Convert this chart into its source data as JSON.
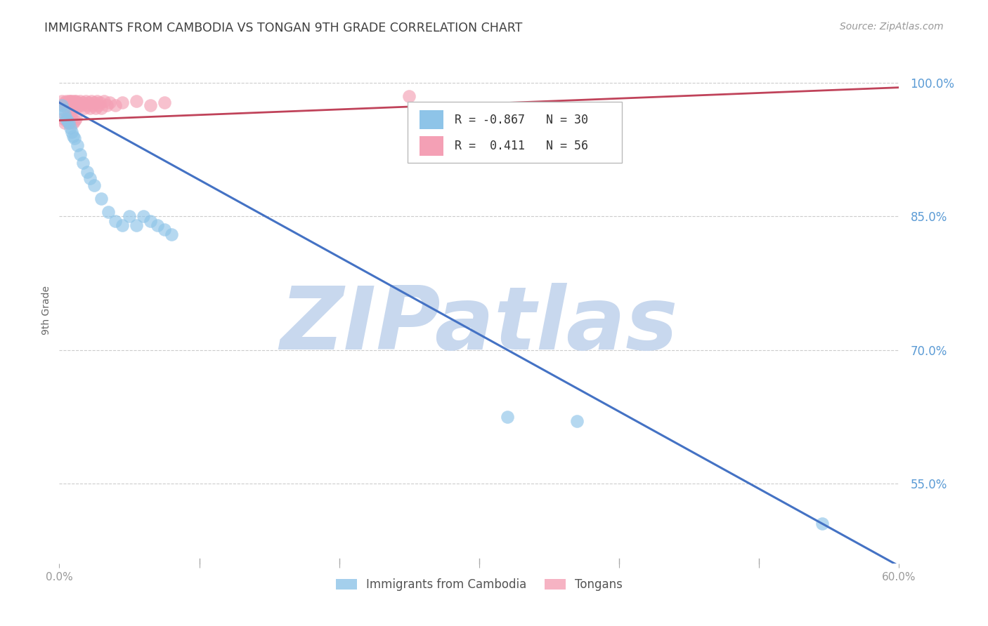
{
  "title": "IMMIGRANTS FROM CAMBODIA VS TONGAN 9TH GRADE CORRELATION CHART",
  "source": "Source: ZipAtlas.com",
  "ylabel": "9th Grade",
  "watermark": "ZIPatlas",
  "legend_blue_label": "Immigrants from Cambodia",
  "legend_pink_label": "Tongans",
  "blue_R": -0.867,
  "blue_N": 30,
  "pink_R": 0.411,
  "pink_N": 56,
  "xlim": [
    0.0,
    0.6
  ],
  "ylim": [
    0.46,
    1.03
  ],
  "yticks": [
    0.55,
    0.7,
    0.85,
    1.0
  ],
  "ytick_labels": [
    "55.0%",
    "70.0%",
    "85.0%",
    "100.0%"
  ],
  "blue_color": "#8EC4E8",
  "pink_color": "#F4A0B5",
  "blue_line_color": "#4472C4",
  "pink_line_color": "#C0435A",
  "grid_color": "#CCCCCC",
  "right_yaxis_color": "#5B9BD5",
  "title_color": "#404040",
  "watermark_color": "#C8D8EE",
  "blue_scatter_x": [
    0.002,
    0.003,
    0.004,
    0.005,
    0.006,
    0.007,
    0.008,
    0.009,
    0.01,
    0.011,
    0.013,
    0.015,
    0.017,
    0.02,
    0.022,
    0.025,
    0.03,
    0.035,
    0.04,
    0.045,
    0.05,
    0.055,
    0.06,
    0.065,
    0.07,
    0.075,
    0.08,
    0.32,
    0.37,
    0.545
  ],
  "blue_scatter_y": [
    0.975,
    0.97,
    0.965,
    0.96,
    0.958,
    0.955,
    0.95,
    0.945,
    0.94,
    0.938,
    0.93,
    0.92,
    0.91,
    0.9,
    0.893,
    0.885,
    0.87,
    0.855,
    0.845,
    0.84,
    0.85,
    0.84,
    0.85,
    0.845,
    0.84,
    0.835,
    0.83,
    0.625,
    0.62,
    0.505
  ],
  "pink_scatter_x": [
    0.002,
    0.003,
    0.004,
    0.005,
    0.005,
    0.006,
    0.006,
    0.007,
    0.007,
    0.008,
    0.008,
    0.009,
    0.009,
    0.01,
    0.01,
    0.011,
    0.011,
    0.012,
    0.012,
    0.013,
    0.014,
    0.015,
    0.016,
    0.017,
    0.018,
    0.019,
    0.02,
    0.021,
    0.022,
    0.023,
    0.024,
    0.025,
    0.026,
    0.027,
    0.028,
    0.029,
    0.03,
    0.032,
    0.034,
    0.036,
    0.003,
    0.004,
    0.005,
    0.006,
    0.007,
    0.008,
    0.009,
    0.01,
    0.011,
    0.012,
    0.04,
    0.045,
    0.055,
    0.065,
    0.075,
    0.25
  ],
  "pink_scatter_y": [
    0.98,
    0.975,
    0.978,
    0.98,
    0.975,
    0.978,
    0.972,
    0.98,
    0.975,
    0.98,
    0.972,
    0.98,
    0.975,
    0.978,
    0.972,
    0.98,
    0.975,
    0.98,
    0.972,
    0.978,
    0.975,
    0.98,
    0.975,
    0.978,
    0.972,
    0.98,
    0.975,
    0.978,
    0.972,
    0.98,
    0.975,
    0.978,
    0.972,
    0.98,
    0.975,
    0.978,
    0.972,
    0.98,
    0.975,
    0.978,
    0.96,
    0.955,
    0.958,
    0.96,
    0.955,
    0.958,
    0.96,
    0.955,
    0.958,
    0.96,
    0.975,
    0.978,
    0.98,
    0.975,
    0.978,
    0.985
  ],
  "blue_line_x": [
    0.0,
    0.6
  ],
  "blue_line_y": [
    0.978,
    0.457
  ],
  "pink_line_x": [
    0.0,
    0.6
  ],
  "pink_line_y": [
    0.958,
    0.995
  ]
}
